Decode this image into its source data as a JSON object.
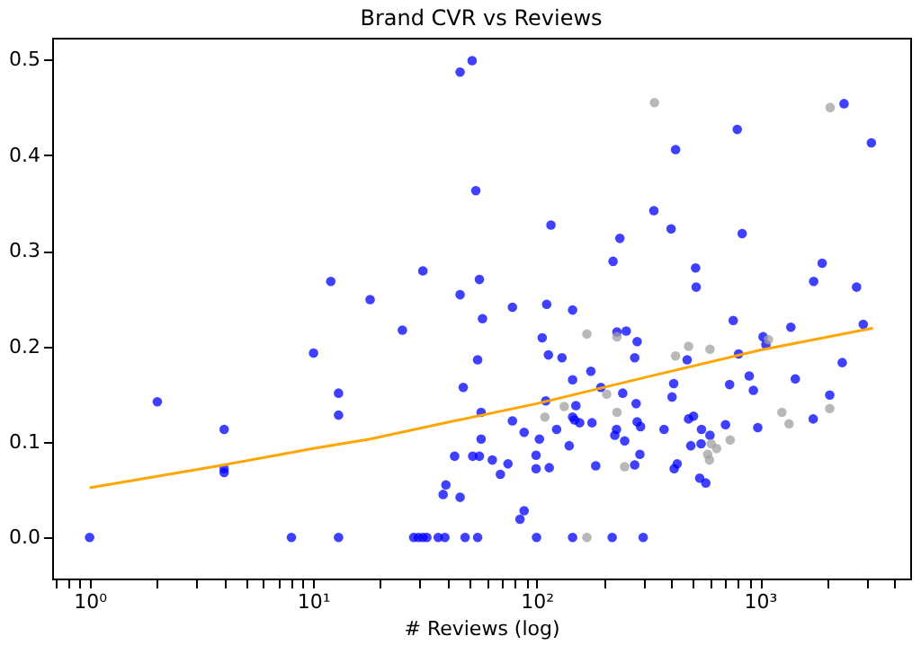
{
  "chart_data": {
    "type": "scatter",
    "title": "Brand CVR vs Reviews",
    "xlabel": "# Reviews (log)",
    "log": "x",
    "grid": false,
    "marker": "circle",
    "xlim": [
      0.68,
      4700
    ],
    "ylim": [
      -0.043,
      0.523
    ],
    "xticks": [
      {
        "value": 0.7,
        "label": null
      },
      {
        "value": 0.8,
        "label": null
      },
      {
        "value": 0.9,
        "label": null
      },
      {
        "value": 1,
        "label": "10⁰"
      },
      {
        "value": 2,
        "label": null
      },
      {
        "value": 3,
        "label": null
      },
      {
        "value": 4,
        "label": null
      },
      {
        "value": 5,
        "label": null
      },
      {
        "value": 6,
        "label": null
      },
      {
        "value": 7,
        "label": null
      },
      {
        "value": 8,
        "label": null
      },
      {
        "value": 9,
        "label": null
      },
      {
        "value": 10,
        "label": "10¹"
      },
      {
        "value": 20,
        "label": null
      },
      {
        "value": 30,
        "label": null
      },
      {
        "value": 40,
        "label": null
      },
      {
        "value": 50,
        "label": null
      },
      {
        "value": 60,
        "label": null
      },
      {
        "value": 70,
        "label": null
      },
      {
        "value": 80,
        "label": null
      },
      {
        "value": 90,
        "label": null
      },
      {
        "value": 100,
        "label": "10²"
      },
      {
        "value": 200,
        "label": null
      },
      {
        "value": 300,
        "label": null
      },
      {
        "value": 400,
        "label": null
      },
      {
        "value": 500,
        "label": null
      },
      {
        "value": 600,
        "label": null
      },
      {
        "value": 700,
        "label": null
      },
      {
        "value": 800,
        "label": null
      },
      {
        "value": 900,
        "label": null
      },
      {
        "value": 1000,
        "label": "10³"
      },
      {
        "value": 2000,
        "label": null
      },
      {
        "value": 3000,
        "label": null
      },
      {
        "value": 4000,
        "label": null
      }
    ],
    "yticks": [
      {
        "value": 0,
        "label": "0.0"
      },
      0.1,
      0.2,
      0.3,
      0.4,
      0.5
    ],
    "series": [
      {
        "color": "#0000ff",
        "x": [
          12,
          18,
          31,
          45.5,
          45.5,
          51.5,
          2377,
          791,
          419,
          3150,
          53.5,
          116,
          335,
          400,
          236,
          832,
          220,
          515,
          518,
          1897,
          1738,
          2704,
          55.5,
          78,
          111,
          145,
          1,
          2.01,
          4,
          4,
          4,
          10.05,
          13,
          13,
          25.1,
          43,
          38.2,
          39.3,
          45.5,
          47,
          8,
          13,
          28.2,
          29.6,
          31,
          32.3,
          36.3,
          38.9,
          47.9,
          54.5,
          100,
          145,
          218,
          300,
          57.3,
          229,
          252,
          106,
          282,
          54.5,
          113,
          130,
          275,
          175,
          145,
          194,
          243,
          110,
          150,
          279,
          56.5,
          145,
          148,
          156,
          177,
          282,
          292,
          78,
          123,
          88,
          103,
          56.5,
          228,
          224,
          248,
          140,
          51.8,
          55.5,
          63.4,
          74.5,
          99.5,
          99.5,
          114,
          68.9,
          184,
          275,
          290,
          88,
          84.3,
          472,
          759,
          802,
          1032,
          1062,
          1374,
          2897,
          411,
          404,
          731,
          895,
          934,
          1439,
          2333,
          2051,
          1730,
          977,
          479,
          504,
          372,
          547,
          597,
          701,
          490,
          545,
          426,
          413,
          537,
          572
        ],
        "values": [
          0.268,
          0.249,
          0.279,
          0.254,
          0.487,
          0.499,
          0.454,
          0.427,
          0.406,
          0.413,
          0.363,
          0.327,
          0.342,
          0.323,
          0.313,
          0.318,
          0.289,
          0.282,
          0.262,
          0.287,
          0.268,
          0.262,
          0.27,
          0.241,
          0.244,
          0.238,
          0,
          0.142,
          0.113,
          0.072,
          0.068,
          0.193,
          0.151,
          0.128,
          0.217,
          0.085,
          0.045,
          0.055,
          0.042,
          0.157,
          0,
          0,
          0,
          0,
          0,
          0,
          0,
          0,
          0,
          0,
          0,
          0,
          0,
          0,
          0.229,
          0.215,
          0.216,
          0.209,
          0.205,
          0.186,
          0.191,
          0.188,
          0.188,
          0.174,
          0.165,
          0.157,
          0.151,
          0.143,
          0.138,
          0.14,
          0.131,
          0.126,
          0.123,
          0.12,
          0.12,
          0.121,
          0.116,
          0.122,
          0.113,
          0.11,
          0.103,
          0.103,
          0.113,
          0.107,
          0.101,
          0.096,
          0.085,
          0.085,
          0.081,
          0.077,
          0.086,
          0.072,
          0.073,
          0.066,
          0.075,
          0.076,
          0.087,
          0.028,
          0.019,
          0.186,
          0.227,
          0.192,
          0.21,
          0.202,
          0.22,
          0.223,
          0.161,
          0.147,
          0.16,
          0.169,
          0.154,
          0.166,
          0.183,
          0.149,
          0.124,
          0.115,
          0.124,
          0.127,
          0.113,
          0.113,
          0.107,
          0.118,
          0.096,
          0.098,
          0.077,
          0.072,
          0.062,
          0.057
        ]
      },
      {
        "color": "#a0a0a0",
        "x": [
          337,
          2061,
          168,
          229,
          206,
          133,
          109,
          229,
          248,
          168,
          419,
          479,
          597,
          1091,
          2051,
          1253,
          1349,
          735,
          605,
          640,
          583,
          594
        ],
        "values": [
          0.455,
          0.45,
          0.213,
          0.21,
          0.15,
          0.137,
          0.126,
          0.131,
          0.074,
          0,
          0.19,
          0.2,
          0.197,
          0.207,
          0.135,
          0.131,
          0.119,
          0.102,
          0.098,
          0.093,
          0.087,
          0.081
        ]
      },
      {
        "type": "line",
        "color": "#ffa500",
        "marker": "none",
        "line_style": "solid",
        "x": [
          1,
          4,
          10,
          18,
          41,
          100,
          300,
          1000,
          3200
        ],
        "values": [
          0.052,
          0.076,
          0.093,
          0.103,
          0.121,
          0.14,
          0.167,
          0.196,
          0.219
        ]
      }
    ]
  }
}
